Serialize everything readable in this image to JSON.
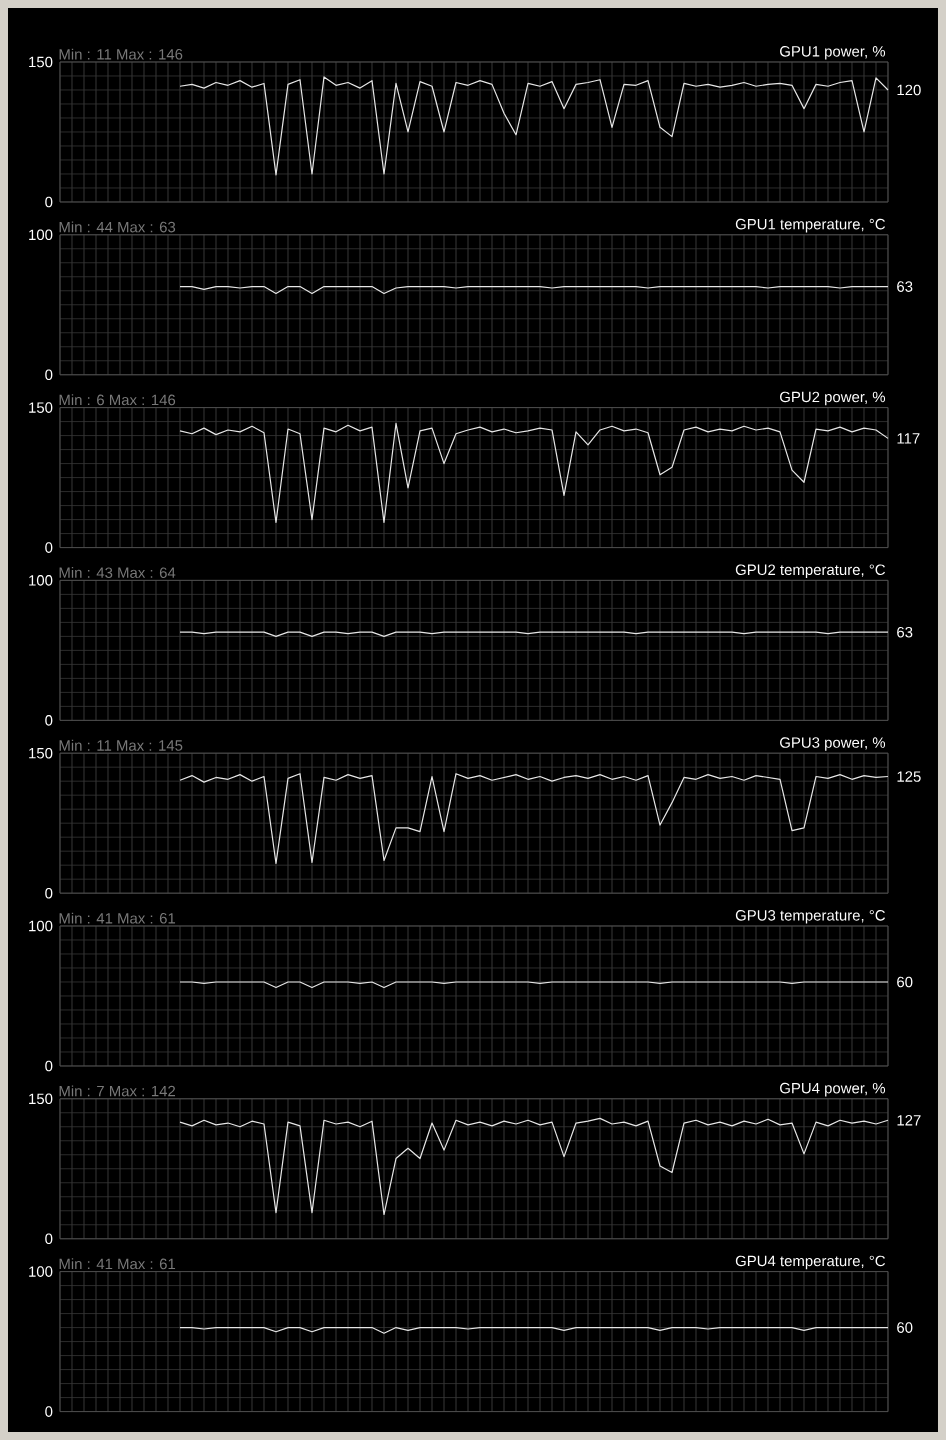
{
  "chart_data": [
    {
      "type": "line",
      "categories": [
        null,
        null,
        null,
        null,
        null,
        null,
        null,
        null,
        null,
        null,
        null,
        null,
        null,
        null,
        null,
        null,
        null,
        null,
        null,
        null,
        null,
        null,
        null,
        null,
        null,
        null,
        null,
        null,
        null,
        null,
        null,
        null,
        null,
        null,
        null,
        null,
        null,
        null,
        null,
        null,
        null,
        null,
        null,
        null,
        null,
        null,
        null,
        null,
        null,
        null,
        null,
        null,
        null,
        null,
        null,
        null,
        null,
        null,
        null,
        null,
        null,
        null,
        null,
        null,
        null,
        null,
        null,
        null,
        null,
        null
      ],
      "ylim": [
        0,
        150
      ],
      "yticks": [
        0,
        150
      ],
      "grid": true,
      "tick_labels": "y",
      "series": [
        {
          "name": "GPU1 power, %",
          "color": "#e6e6e6",
          "values": [
            null,
            null,
            null,
            null,
            null,
            null,
            null,
            null,
            null,
            null,
            124,
            126,
            122,
            128,
            125,
            130,
            123,
            127,
            29,
            126,
            131,
            30,
            134,
            125,
            128,
            122,
            130,
            30,
            127,
            75,
            129,
            124,
            75,
            128,
            125,
            130,
            126,
            95,
            72,
            127,
            124,
            129,
            100,
            126,
            128,
            131,
            80,
            126,
            125,
            130,
            80,
            70,
            127,
            124,
            126,
            123,
            125,
            128,
            124,
            126,
            127,
            125,
            100,
            126,
            124,
            128,
            130,
            75,
            133,
            120
          ]
        }
      ],
      "annotations": [
        "Min : 11  Max : 146",
        "120"
      ]
    },
    {
      "type": "line",
      "categories": [
        null,
        null,
        null,
        null,
        null,
        null,
        null,
        null,
        null,
        null,
        null,
        null,
        null,
        null,
        null,
        null,
        null,
        null,
        null,
        null,
        null,
        null,
        null,
        null,
        null,
        null,
        null,
        null,
        null,
        null,
        null,
        null,
        null,
        null,
        null,
        null,
        null,
        null,
        null,
        null,
        null,
        null,
        null,
        null,
        null,
        null,
        null,
        null,
        null,
        null,
        null,
        null,
        null,
        null,
        null,
        null,
        null,
        null,
        null,
        null,
        null,
        null,
        null,
        null,
        null,
        null,
        null,
        null,
        null,
        null
      ],
      "ylim": [
        0,
        100
      ],
      "yticks": [
        0,
        100
      ],
      "grid": true,
      "tick_labels": "y",
      "series": [
        {
          "name": "GPU1 temperature, °C",
          "color": "#e6e6e6",
          "values": [
            null,
            null,
            null,
            null,
            null,
            null,
            null,
            null,
            null,
            null,
            63,
            63,
            61,
            63,
            63,
            62,
            63,
            63,
            58,
            63,
            63,
            58,
            63,
            63,
            63,
            63,
            63,
            58,
            62,
            63,
            63,
            63,
            63,
            62,
            63,
            63,
            63,
            63,
            63,
            63,
            63,
            62,
            63,
            63,
            63,
            63,
            63,
            63,
            63,
            62,
            63,
            63,
            63,
            63,
            63,
            63,
            63,
            63,
            63,
            62,
            63,
            63,
            63,
            63,
            63,
            62,
            63,
            63,
            63,
            63
          ]
        }
      ],
      "annotations": [
        "Min : 44  Max : 63",
        "63"
      ]
    },
    {
      "type": "line",
      "categories": [
        null,
        null,
        null,
        null,
        null,
        null,
        null,
        null,
        null,
        null,
        null,
        null,
        null,
        null,
        null,
        null,
        null,
        null,
        null,
        null,
        null,
        null,
        null,
        null,
        null,
        null,
        null,
        null,
        null,
        null,
        null,
        null,
        null,
        null,
        null,
        null,
        null,
        null,
        null,
        null,
        null,
        null,
        null,
        null,
        null,
        null,
        null,
        null,
        null,
        null,
        null,
        null,
        null,
        null,
        null,
        null,
        null,
        null,
        null,
        null,
        null,
        null,
        null,
        null,
        null,
        null,
        null,
        null,
        null,
        null
      ],
      "ylim": [
        0,
        150
      ],
      "yticks": [
        0,
        150
      ],
      "grid": true,
      "tick_labels": "y",
      "series": [
        {
          "name": "GPU2 power, %",
          "color": "#e6e6e6",
          "values": [
            null,
            null,
            null,
            null,
            null,
            null,
            null,
            null,
            null,
            null,
            125,
            122,
            128,
            121,
            126,
            124,
            130,
            123,
            27,
            127,
            122,
            30,
            128,
            124,
            131,
            125,
            129,
            27,
            133,
            64,
            125,
            128,
            90,
            122,
            126,
            129,
            124,
            127,
            123,
            125,
            128,
            126,
            56,
            124,
            110,
            126,
            130,
            125,
            127,
            123,
            78,
            86,
            126,
            129,
            124,
            127,
            125,
            130,
            126,
            128,
            124,
            83,
            70,
            127,
            125,
            129,
            124,
            128,
            126,
            117
          ]
        }
      ],
      "annotations": [
        "Min : 6  Max : 146",
        "117"
      ]
    },
    {
      "type": "line",
      "categories": [
        null,
        null,
        null,
        null,
        null,
        null,
        null,
        null,
        null,
        null,
        null,
        null,
        null,
        null,
        null,
        null,
        null,
        null,
        null,
        null,
        null,
        null,
        null,
        null,
        null,
        null,
        null,
        null,
        null,
        null,
        null,
        null,
        null,
        null,
        null,
        null,
        null,
        null,
        null,
        null,
        null,
        null,
        null,
        null,
        null,
        null,
        null,
        null,
        null,
        null,
        null,
        null,
        null,
        null,
        null,
        null,
        null,
        null,
        null,
        null,
        null,
        null,
        null,
        null,
        null,
        null,
        null,
        null,
        null,
        null
      ],
      "ylim": [
        0,
        100
      ],
      "yticks": [
        0,
        100
      ],
      "grid": true,
      "tick_labels": "y",
      "series": [
        {
          "name": "GPU2 temperature, °C",
          "color": "#e6e6e6",
          "values": [
            null,
            null,
            null,
            null,
            null,
            null,
            null,
            null,
            null,
            null,
            63,
            63,
            62,
            63,
            63,
            63,
            63,
            63,
            60,
            63,
            63,
            60,
            63,
            63,
            62,
            63,
            63,
            60,
            63,
            63,
            63,
            62,
            63,
            63,
            63,
            63,
            63,
            63,
            63,
            62,
            63,
            63,
            63,
            63,
            63,
            63,
            63,
            63,
            62,
            63,
            63,
            63,
            63,
            63,
            63,
            63,
            63,
            62,
            63,
            63,
            63,
            63,
            63,
            63,
            62,
            63,
            63,
            63,
            63,
            63
          ]
        }
      ],
      "annotations": [
        "Min : 43  Max : 64",
        "63"
      ]
    },
    {
      "type": "line",
      "categories": [
        null,
        null,
        null,
        null,
        null,
        null,
        null,
        null,
        null,
        null,
        null,
        null,
        null,
        null,
        null,
        null,
        null,
        null,
        null,
        null,
        null,
        null,
        null,
        null,
        null,
        null,
        null,
        null,
        null,
        null,
        null,
        null,
        null,
        null,
        null,
        null,
        null,
        null,
        null,
        null,
        null,
        null,
        null,
        null,
        null,
        null,
        null,
        null,
        null,
        null,
        null,
        null,
        null,
        null,
        null,
        null,
        null,
        null,
        null,
        null,
        null,
        null,
        null,
        null,
        null,
        null,
        null,
        null,
        null,
        null
      ],
      "ylim": [
        0,
        150
      ],
      "yticks": [
        0,
        150
      ],
      "grid": true,
      "tick_labels": "y",
      "series": [
        {
          "name": "GPU3 power, %",
          "color": "#e6e6e6",
          "values": [
            null,
            null,
            null,
            null,
            null,
            null,
            null,
            null,
            null,
            null,
            121,
            126,
            119,
            124,
            122,
            127,
            120,
            125,
            32,
            123,
            128,
            33,
            124,
            121,
            127,
            123,
            126,
            35,
            70,
            70,
            66,
            125,
            66,
            128,
            123,
            126,
            121,
            124,
            127,
            122,
            125,
            120,
            124,
            126,
            123,
            127,
            122,
            125,
            121,
            126,
            73,
            97,
            124,
            122,
            127,
            123,
            125,
            121,
            126,
            124,
            122,
            67,
            70,
            125,
            123,
            127,
            122,
            126,
            124,
            125
          ]
        }
      ],
      "annotations": [
        "Min : 11  Max : 145",
        "125"
      ]
    },
    {
      "type": "line",
      "categories": [
        null,
        null,
        null,
        null,
        null,
        null,
        null,
        null,
        null,
        null,
        null,
        null,
        null,
        null,
        null,
        null,
        null,
        null,
        null,
        null,
        null,
        null,
        null,
        null,
        null,
        null,
        null,
        null,
        null,
        null,
        null,
        null,
        null,
        null,
        null,
        null,
        null,
        null,
        null,
        null,
        null,
        null,
        null,
        null,
        null,
        null,
        null,
        null,
        null,
        null,
        null,
        null,
        null,
        null,
        null,
        null,
        null,
        null,
        null,
        null,
        null,
        null,
        null,
        null,
        null,
        null,
        null,
        null,
        null,
        null
      ],
      "ylim": [
        0,
        100
      ],
      "yticks": [
        0,
        100
      ],
      "grid": true,
      "tick_labels": "y",
      "series": [
        {
          "name": "GPU3 temperature, °C",
          "color": "#e6e6e6",
          "values": [
            null,
            null,
            null,
            null,
            null,
            null,
            null,
            null,
            null,
            null,
            60,
            60,
            59,
            60,
            60,
            60,
            60,
            60,
            56,
            60,
            60,
            56,
            60,
            60,
            60,
            59,
            60,
            56,
            60,
            60,
            60,
            60,
            59,
            60,
            60,
            60,
            60,
            60,
            60,
            60,
            59,
            60,
            60,
            60,
            60,
            60,
            60,
            60,
            60,
            60,
            59,
            60,
            60,
            60,
            60,
            60,
            60,
            60,
            60,
            60,
            60,
            59,
            60,
            60,
            60,
            60,
            60,
            60,
            60,
            60
          ]
        }
      ],
      "annotations": [
        "Min : 41  Max : 61",
        "60"
      ]
    },
    {
      "type": "line",
      "categories": [
        null,
        null,
        null,
        null,
        null,
        null,
        null,
        null,
        null,
        null,
        null,
        null,
        null,
        null,
        null,
        null,
        null,
        null,
        null,
        null,
        null,
        null,
        null,
        null,
        null,
        null,
        null,
        null,
        null,
        null,
        null,
        null,
        null,
        null,
        null,
        null,
        null,
        null,
        null,
        null,
        null,
        null,
        null,
        null,
        null,
        null,
        null,
        null,
        null,
        null,
        null,
        null,
        null,
        null,
        null,
        null,
        null,
        null,
        null,
        null,
        null,
        null,
        null,
        null,
        null,
        null,
        null,
        null,
        null,
        null
      ],
      "ylim": [
        0,
        150
      ],
      "yticks": [
        0,
        150
      ],
      "grid": true,
      "tick_labels": "y",
      "series": [
        {
          "name": "GPU4 power, %",
          "color": "#e6e6e6",
          "values": [
            null,
            null,
            null,
            null,
            null,
            null,
            null,
            null,
            null,
            null,
            125,
            121,
            127,
            122,
            124,
            120,
            126,
            123,
            28,
            125,
            121,
            28,
            127,
            123,
            125,
            120,
            126,
            26,
            86,
            97,
            86,
            124,
            95,
            127,
            122,
            125,
            121,
            126,
            123,
            127,
            122,
            125,
            88,
            124,
            126,
            129,
            123,
            125,
            121,
            126,
            78,
            71,
            124,
            127,
            122,
            125,
            121,
            126,
            123,
            128,
            122,
            124,
            91,
            125,
            121,
            127,
            124,
            126,
            123,
            127
          ]
        }
      ],
      "annotations": [
        "Min : 7  Max : 142",
        "127"
      ]
    },
    {
      "type": "line",
      "categories": [
        null,
        null,
        null,
        null,
        null,
        null,
        null,
        null,
        null,
        null,
        null,
        null,
        null,
        null,
        null,
        null,
        null,
        null,
        null,
        null,
        null,
        null,
        null,
        null,
        null,
        null,
        null,
        null,
        null,
        null,
        null,
        null,
        null,
        null,
        null,
        null,
        null,
        null,
        null,
        null,
        null,
        null,
        null,
        null,
        null,
        null,
        null,
        null,
        null,
        null,
        null,
        null,
        null,
        null,
        null,
        null,
        null,
        null,
        null,
        null,
        null,
        null,
        null,
        null,
        null,
        null,
        null,
        null,
        null,
        null
      ],
      "ylim": [
        0,
        100
      ],
      "yticks": [
        0,
        100
      ],
      "grid": true,
      "tick_labels": "y",
      "series": [
        {
          "name": "GPU4 temperature, °C",
          "color": "#e6e6e6",
          "values": [
            null,
            null,
            null,
            null,
            null,
            null,
            null,
            null,
            null,
            null,
            60,
            60,
            59,
            60,
            60,
            60,
            60,
            60,
            57,
            60,
            60,
            57,
            60,
            60,
            60,
            60,
            60,
            56,
            60,
            58,
            60,
            60,
            60,
            60,
            59,
            60,
            60,
            60,
            60,
            60,
            60,
            60,
            58,
            60,
            60,
            60,
            60,
            60,
            60,
            60,
            58,
            60,
            60,
            60,
            59,
            60,
            60,
            60,
            60,
            60,
            60,
            60,
            58,
            60,
            60,
            60,
            60,
            60,
            60,
            60
          ]
        }
      ],
      "annotations": [
        "Min : 41  Max : 61",
        "60"
      ]
    }
  ]
}
